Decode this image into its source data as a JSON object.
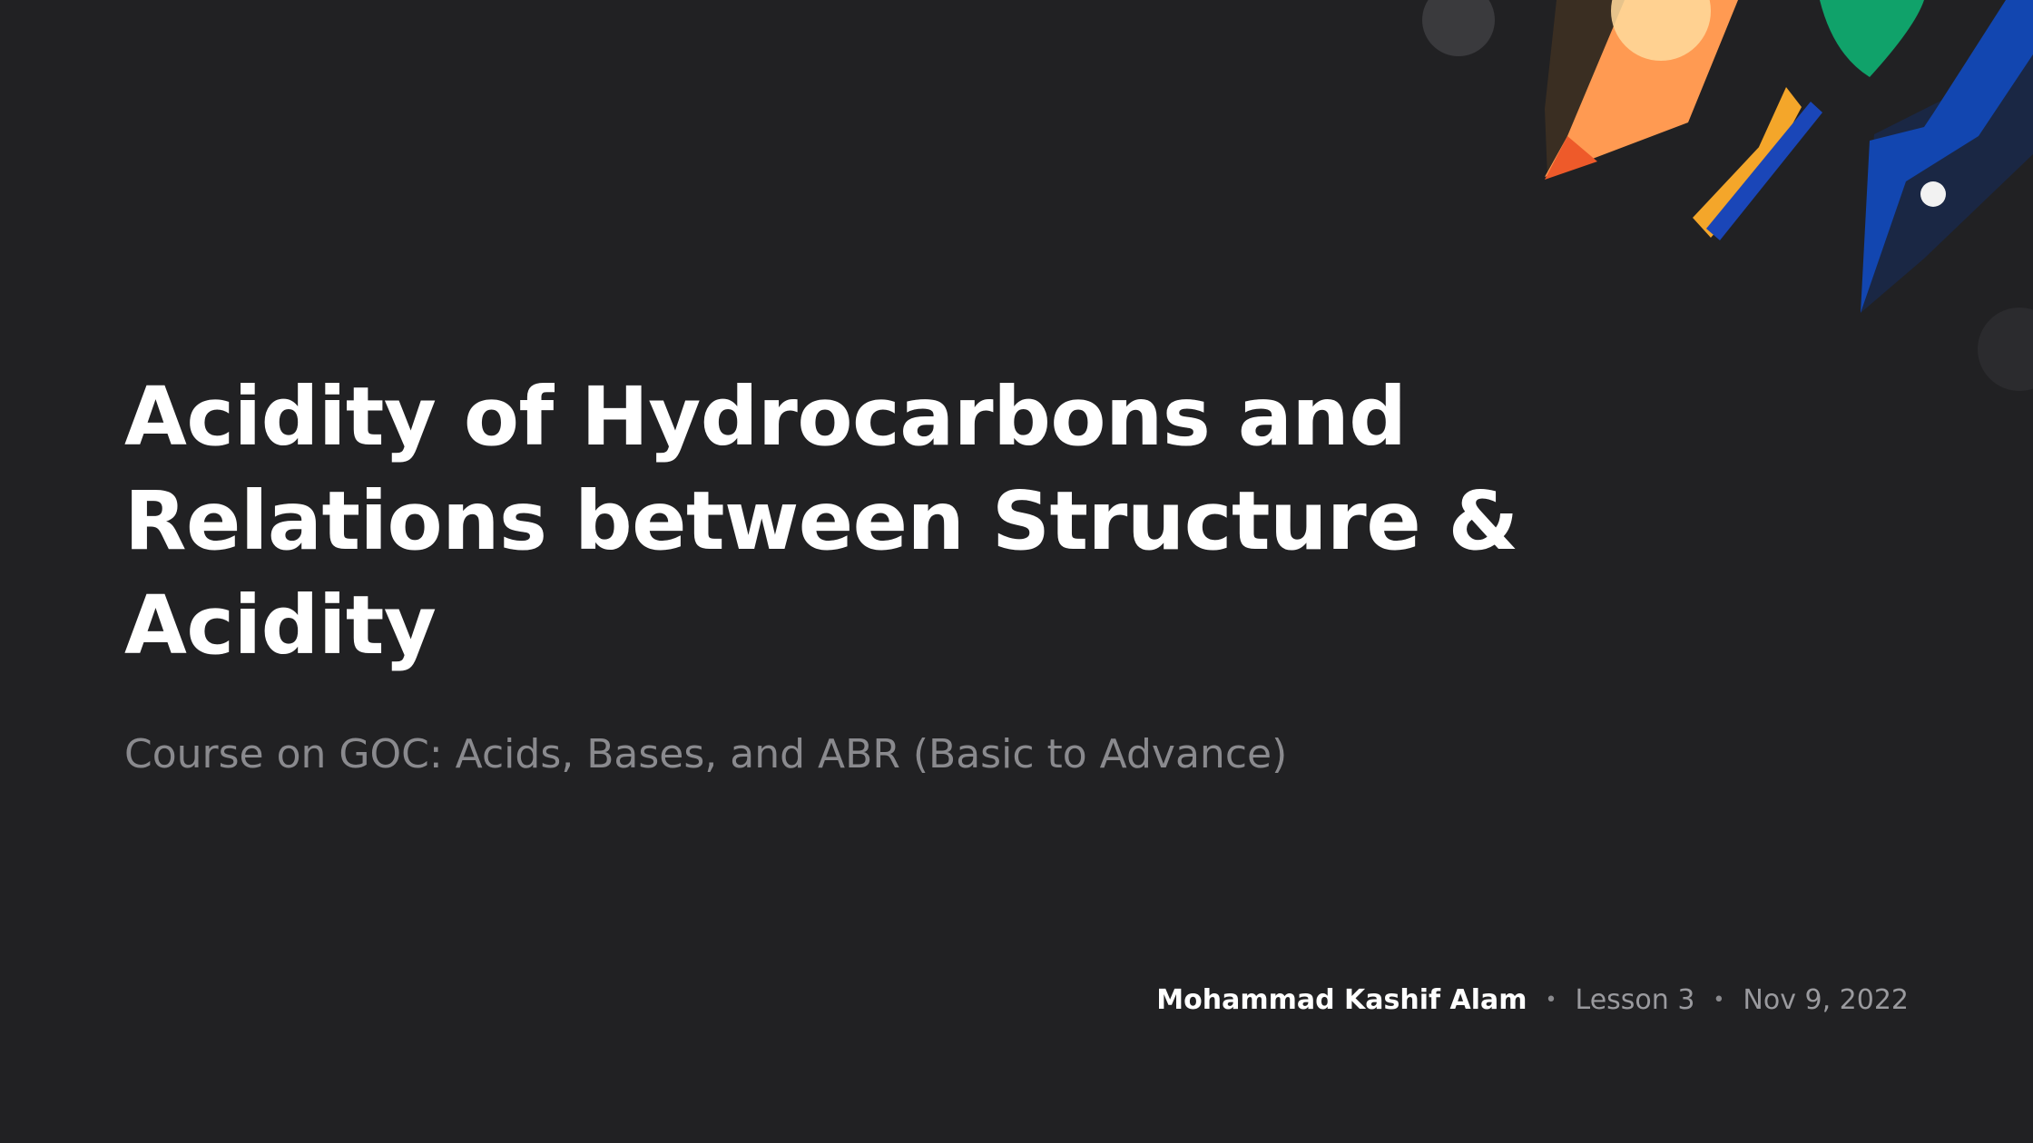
{
  "slide": {
    "title_lines": [
      "Acidity of Hydrocarbons and",
      "Relations between Structure &",
      "Acidity"
    ],
    "subtitle": "Course on GOC: Acids, Bases, and ABR (Basic to Advance)",
    "author": "Mohammad Kashif Alam",
    "separator": "•",
    "lesson": "Lesson 3",
    "date": "Nov 9, 2022"
  },
  "colors": {
    "background": "#212123",
    "title": "#ffffff",
    "subtitle": "#8a8a8e",
    "accent_orange": "#ff9a52",
    "accent_red": "#ee5a2a",
    "accent_yellow": "#f4a62a",
    "accent_green": "#10a26a",
    "accent_blue": "#1246b0",
    "accent_navy": "#1a2e60"
  },
  "decoration": {
    "icons": [
      "circle-shape",
      "pencil-shape",
      "leaf-shape",
      "bowtie-shape",
      "rocket-shape",
      "dot-shape"
    ]
  }
}
